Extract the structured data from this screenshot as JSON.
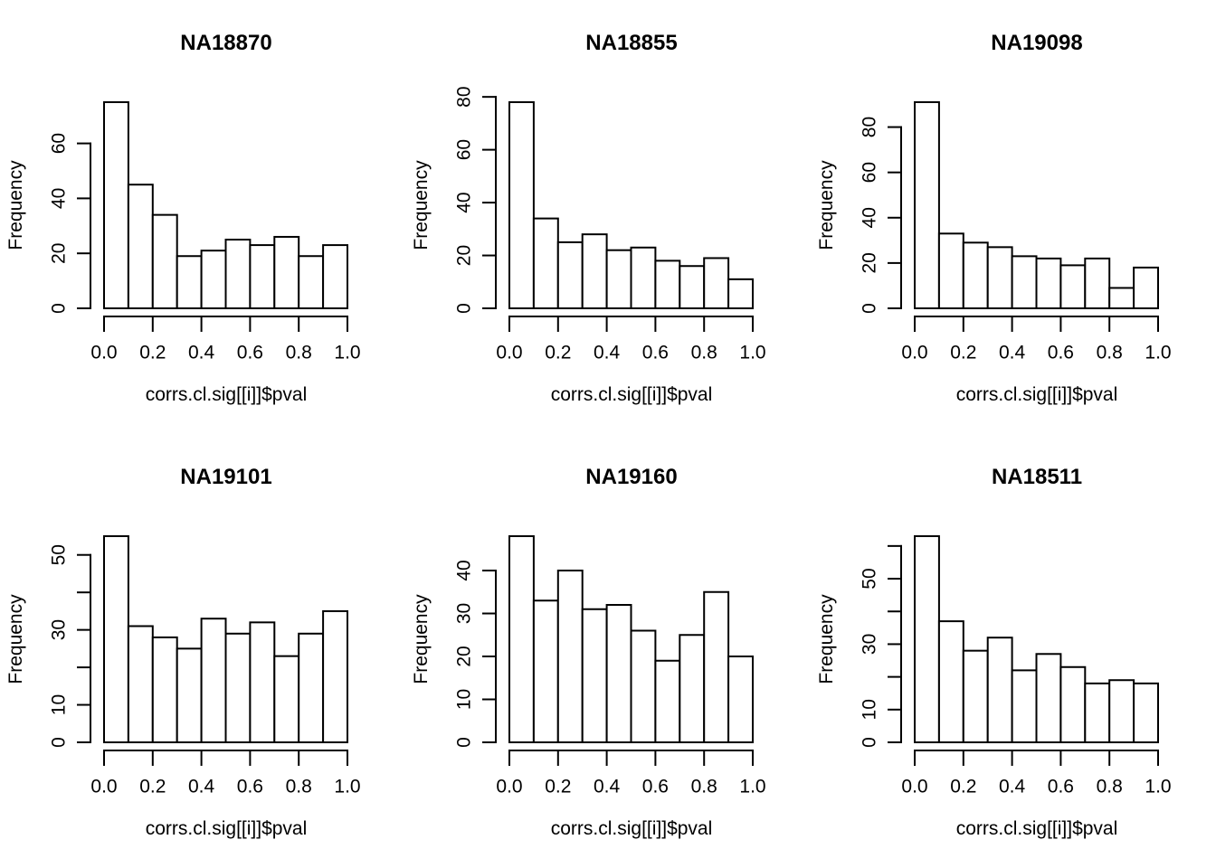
{
  "figure": {
    "background_color": "#ffffff",
    "line_color": "#000000",
    "layout": "2 rows x 3 columns of base-R style histograms"
  },
  "chart_data": [
    {
      "type": "bar",
      "subtype": "histogram",
      "title": "NA18870",
      "xlabel": "corrs.cl.sig[[i]]$pval",
      "ylabel": "Frequency",
      "bin_width": 0.1,
      "xlim": [
        0.0,
        1.0
      ],
      "ylim": [
        0,
        75
      ],
      "categories": [
        "0.0-0.1",
        "0.1-0.2",
        "0.2-0.3",
        "0.3-0.4",
        "0.4-0.5",
        "0.5-0.6",
        "0.6-0.7",
        "0.7-0.8",
        "0.8-0.9",
        "0.9-1.0"
      ],
      "counts": [
        75,
        45,
        34,
        19,
        21,
        25,
        23,
        26,
        19,
        23
      ],
      "x_tick_values": [
        0.0,
        0.2,
        0.4,
        0.6,
        0.8,
        1.0
      ],
      "x_tick_labels": [
        "0.0",
        "0.2",
        "0.4",
        "0.6",
        "0.8",
        "1.0"
      ],
      "y_tick_values": [
        0,
        20,
        40,
        60
      ],
      "y_tick_labels": [
        "0",
        "20",
        "40",
        "60"
      ],
      "grid": false,
      "bar_fill": "#ffffff",
      "bar_stroke": "#000000"
    },
    {
      "type": "bar",
      "subtype": "histogram",
      "title": "NA18855",
      "xlabel": "corrs.cl.sig[[i]]$pval",
      "ylabel": "Frequency",
      "bin_width": 0.1,
      "xlim": [
        0.0,
        1.0
      ],
      "ylim": [
        0,
        78
      ],
      "categories": [
        "0.0-0.1",
        "0.1-0.2",
        "0.2-0.3",
        "0.3-0.4",
        "0.4-0.5",
        "0.5-0.6",
        "0.6-0.7",
        "0.7-0.8",
        "0.8-0.9",
        "0.9-1.0"
      ],
      "counts": [
        78,
        34,
        25,
        28,
        22,
        23,
        18,
        16,
        19,
        11
      ],
      "x_tick_values": [
        0.0,
        0.2,
        0.4,
        0.6,
        0.8,
        1.0
      ],
      "x_tick_labels": [
        "0.0",
        "0.2",
        "0.4",
        "0.6",
        "0.8",
        "1.0"
      ],
      "y_tick_values": [
        0,
        20,
        40,
        60,
        80
      ],
      "y_tick_labels": [
        "0",
        "20",
        "40",
        "60",
        "80"
      ],
      "grid": false,
      "bar_fill": "#ffffff",
      "bar_stroke": "#000000"
    },
    {
      "type": "bar",
      "subtype": "histogram",
      "title": "NA19098",
      "xlabel": "corrs.cl.sig[[i]]$pval",
      "ylabel": "Frequency",
      "bin_width": 0.1,
      "xlim": [
        0.0,
        1.0
      ],
      "ylim": [
        0,
        91
      ],
      "categories": [
        "0.0-0.1",
        "0.1-0.2",
        "0.2-0.3",
        "0.3-0.4",
        "0.4-0.5",
        "0.5-0.6",
        "0.6-0.7",
        "0.7-0.8",
        "0.8-0.9",
        "0.9-1.0"
      ],
      "counts": [
        91,
        33,
        29,
        27,
        23,
        22,
        19,
        22,
        9,
        18
      ],
      "x_tick_values": [
        0.0,
        0.2,
        0.4,
        0.6,
        0.8,
        1.0
      ],
      "x_tick_labels": [
        "0.0",
        "0.2",
        "0.4",
        "0.6",
        "0.8",
        "1.0"
      ],
      "y_tick_values": [
        0,
        20,
        40,
        60,
        80
      ],
      "y_tick_labels": [
        "0",
        "20",
        "40",
        "60",
        "80"
      ],
      "grid": false,
      "bar_fill": "#ffffff",
      "bar_stroke": "#000000"
    },
    {
      "type": "bar",
      "subtype": "histogram",
      "title": "NA19101",
      "xlabel": "corrs.cl.sig[[i]]$pval",
      "ylabel": "Frequency",
      "bin_width": 0.1,
      "xlim": [
        0.0,
        1.0
      ],
      "ylim": [
        0,
        55
      ],
      "categories": [
        "0.0-0.1",
        "0.1-0.2",
        "0.2-0.3",
        "0.3-0.4",
        "0.4-0.5",
        "0.5-0.6",
        "0.6-0.7",
        "0.7-0.8",
        "0.8-0.9",
        "0.9-1.0"
      ],
      "counts": [
        55,
        31,
        28,
        25,
        33,
        29,
        32,
        23,
        29,
        35
      ],
      "x_tick_values": [
        0.0,
        0.2,
        0.4,
        0.6,
        0.8,
        1.0
      ],
      "x_tick_labels": [
        "0.0",
        "0.2",
        "0.4",
        "0.6",
        "0.8",
        "1.0"
      ],
      "y_tick_values": [
        0,
        10,
        20,
        30,
        40,
        50
      ],
      "y_tick_labels": [
        "0",
        "10",
        "",
        "30",
        "",
        "50"
      ],
      "grid": false,
      "bar_fill": "#ffffff",
      "bar_stroke": "#000000"
    },
    {
      "type": "bar",
      "subtype": "histogram",
      "title": "NA19160",
      "xlabel": "corrs.cl.sig[[i]]$pval",
      "ylabel": "Frequency",
      "bin_width": 0.1,
      "xlim": [
        0.0,
        1.0
      ],
      "ylim": [
        0,
        48
      ],
      "categories": [
        "0.0-0.1",
        "0.1-0.2",
        "0.2-0.3",
        "0.3-0.4",
        "0.4-0.5",
        "0.5-0.6",
        "0.6-0.7",
        "0.7-0.8",
        "0.8-0.9",
        "0.9-1.0"
      ],
      "counts": [
        48,
        33,
        40,
        31,
        32,
        26,
        19,
        25,
        35,
        20
      ],
      "x_tick_values": [
        0.0,
        0.2,
        0.4,
        0.6,
        0.8,
        1.0
      ],
      "x_tick_labels": [
        "0.0",
        "0.2",
        "0.4",
        "0.6",
        "0.8",
        "1.0"
      ],
      "y_tick_values": [
        0,
        10,
        20,
        30,
        40
      ],
      "y_tick_labels": [
        "0",
        "10",
        "20",
        "30",
        "40"
      ],
      "grid": false,
      "bar_fill": "#ffffff",
      "bar_stroke": "#000000"
    },
    {
      "type": "bar",
      "subtype": "histogram",
      "title": "NA18511",
      "xlabel": "corrs.cl.sig[[i]]$pval",
      "ylabel": "Frequency",
      "bin_width": 0.1,
      "xlim": [
        0.0,
        1.0
      ],
      "ylim": [
        0,
        63
      ],
      "categories": [
        "0.0-0.1",
        "0.1-0.2",
        "0.2-0.3",
        "0.3-0.4",
        "0.4-0.5",
        "0.5-0.6",
        "0.6-0.7",
        "0.7-0.8",
        "0.8-0.9",
        "0.9-1.0"
      ],
      "counts": [
        63,
        37,
        28,
        32,
        22,
        27,
        23,
        18,
        19,
        18
      ],
      "x_tick_values": [
        0.0,
        0.2,
        0.4,
        0.6,
        0.8,
        1.0
      ],
      "x_tick_labels": [
        "0.0",
        "0.2",
        "0.4",
        "0.6",
        "0.8",
        "1.0"
      ],
      "y_tick_values": [
        0,
        10,
        20,
        30,
        40,
        50,
        60
      ],
      "y_tick_labels": [
        "0",
        "10",
        "",
        "30",
        "",
        "50",
        ""
      ],
      "grid": false,
      "bar_fill": "#ffffff",
      "bar_stroke": "#000000"
    }
  ]
}
